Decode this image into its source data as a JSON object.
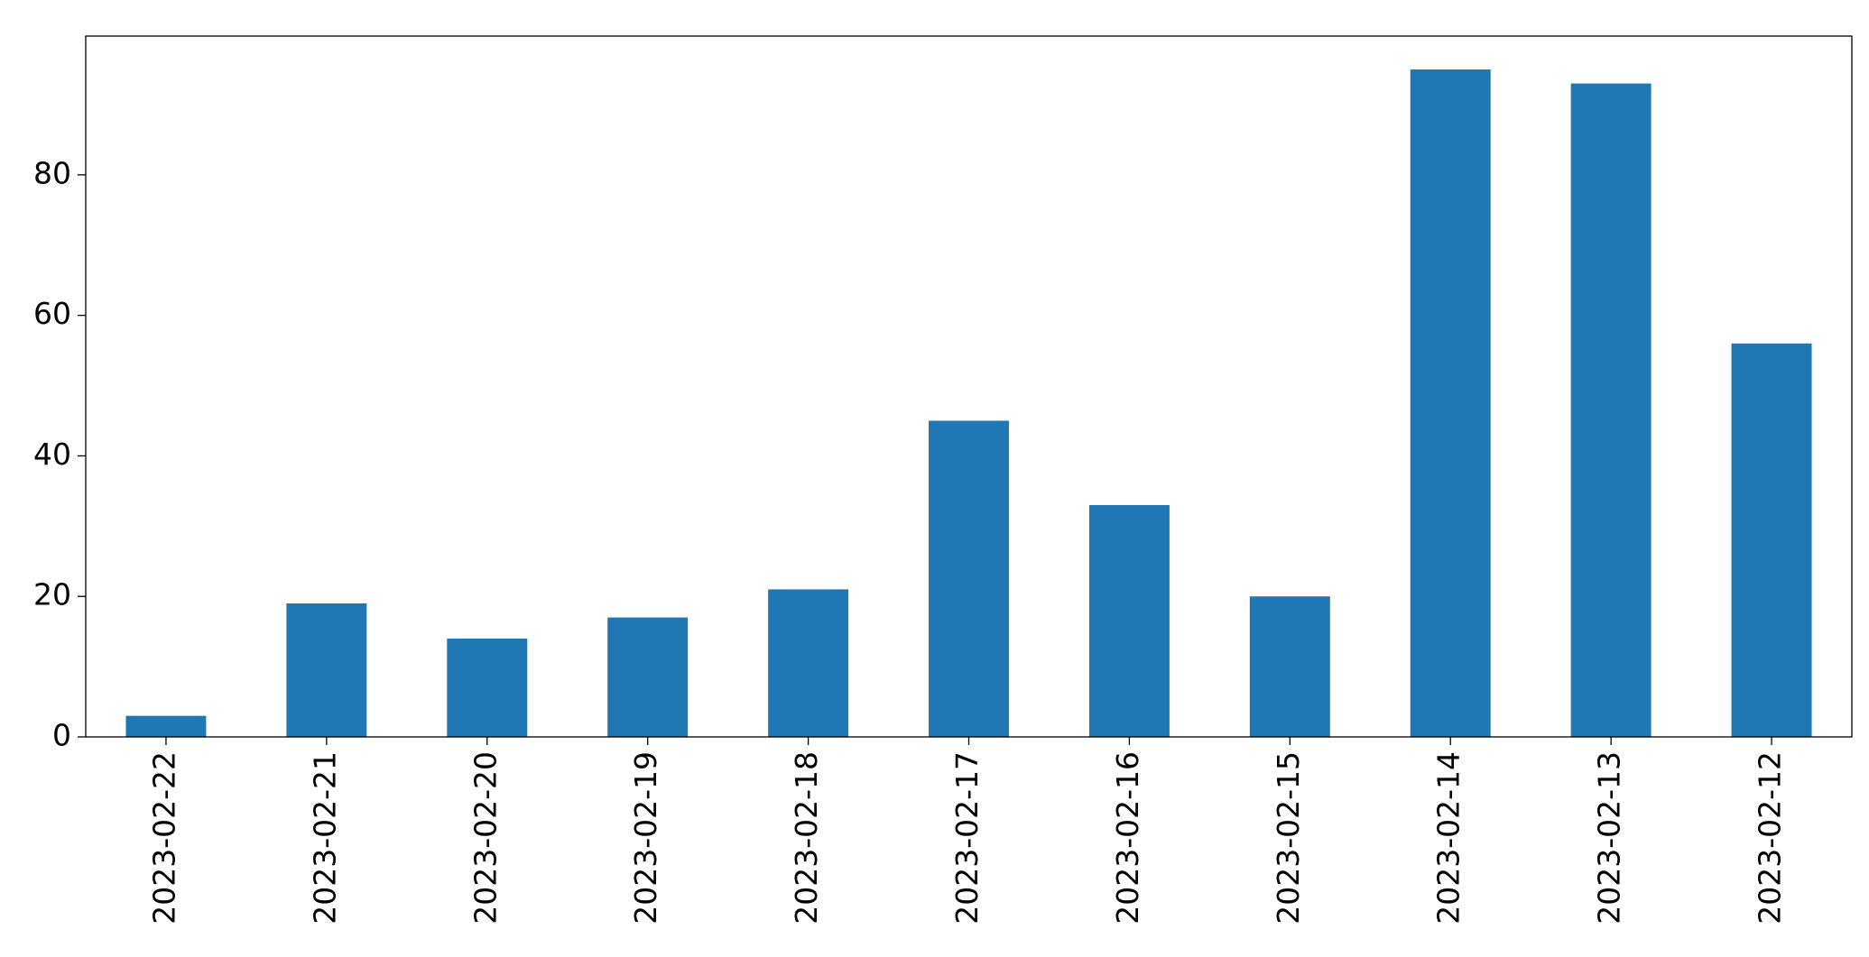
{
  "chart_data": {
    "type": "bar",
    "categories": [
      "2023-02-22",
      "2023-02-21",
      "2023-02-20",
      "2023-02-19",
      "2023-02-18",
      "2023-02-17",
      "2023-02-16",
      "2023-02-15",
      "2023-02-14",
      "2023-02-13",
      "2023-02-12"
    ],
    "values": [
      3,
      19,
      14,
      17,
      21,
      45,
      33,
      20,
      95,
      93,
      56
    ],
    "color": "#1f77b4",
    "ylim": [
      0,
      99.75
    ],
    "yticks": [
      0,
      20,
      40,
      60,
      80
    ],
    "grid": false
  }
}
